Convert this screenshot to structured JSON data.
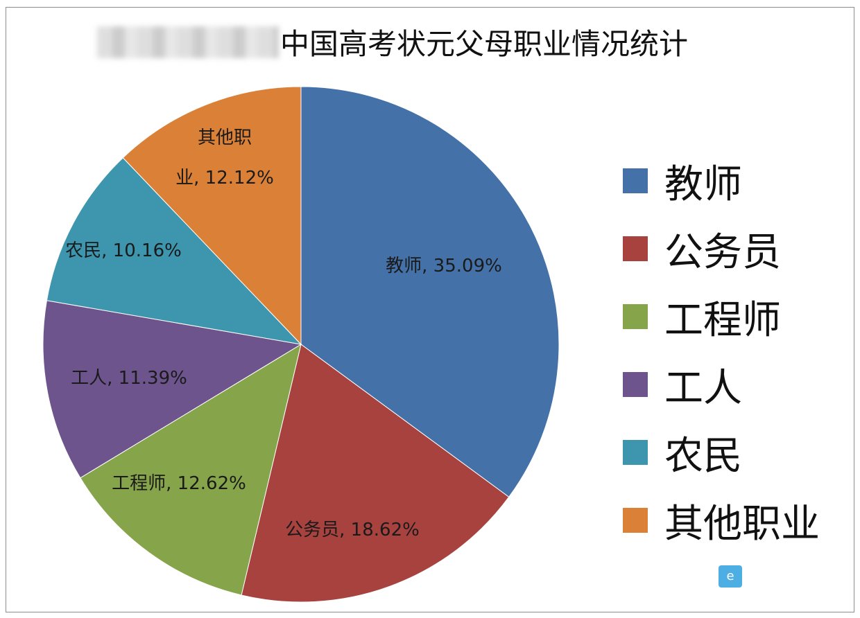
{
  "chart_data": {
    "type": "pie",
    "title": "中国高考状元父母职业情况统计",
    "categories": [
      "教师",
      "公务员",
      "工程师",
      "工人",
      "农民",
      "其他职业"
    ],
    "values": [
      35.09,
      18.62,
      12.62,
      11.39,
      10.16,
      12.12
    ],
    "value_labels": [
      "35.09%",
      "18.62%",
      "12.62%",
      "11.39%",
      "10.16%",
      "12.12%"
    ],
    "data_labels": [
      "教师, 35.09%",
      "公务员, 18.62%",
      "工程师, 12.62%",
      "工人, 11.39%",
      "农民, 10.16%",
      [
        "其他职",
        "业, 12.12%"
      ]
    ],
    "colors": [
      "#4472a8",
      "#a8423f",
      "#86a44a",
      "#6e548d",
      "#3d96ae",
      "#da8137"
    ],
    "start_angle": "12 o'clock, clockwise",
    "legend_position": "right"
  }
}
